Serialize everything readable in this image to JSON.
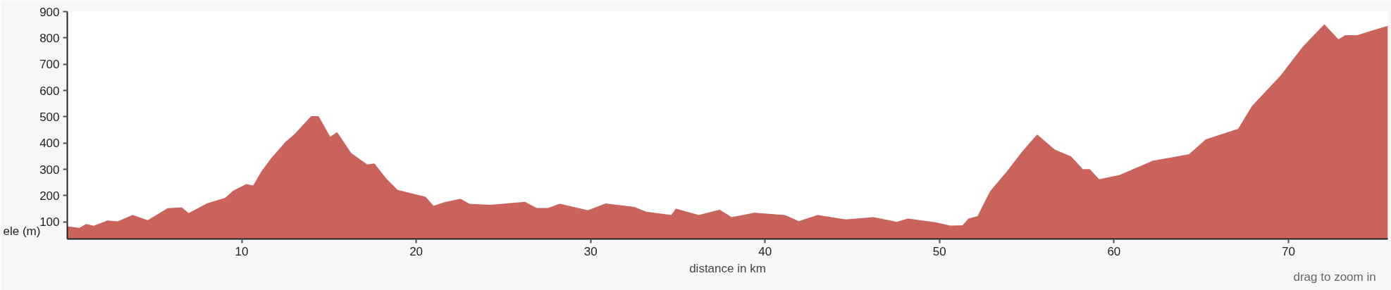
{
  "chart_data": {
    "type": "area",
    "xlabel": "distance in km",
    "ylabel": "ele (m)",
    "annotations": [
      "drag to zoom in"
    ],
    "xlim": [
      0,
      75.7
    ],
    "xticks": [
      10,
      20,
      30,
      40,
      50,
      60,
      70
    ],
    "ylim": [
      35,
      900
    ],
    "yticks": [
      100,
      200,
      300,
      400,
      500,
      600,
      700,
      800,
      900
    ],
    "grid": false,
    "series": [
      {
        "color": "#c9635c",
        "x": [
          0,
          0.69,
          1.09,
          1.5,
          2.29,
          2.9,
          3.75,
          4.62,
          5.75,
          6.55,
          6.95,
          8,
          9.07,
          9.55,
          10.27,
          10.67,
          11.14,
          11.74,
          12.54,
          13.07,
          13.99,
          14.39,
          15.06,
          15.46,
          16.26,
          17.19,
          17.59,
          18.26,
          18.92,
          20.52,
          20.99,
          21.58,
          22.52,
          23.05,
          24.24,
          26.24,
          26.9,
          27.57,
          28.23,
          29.85,
          30.85,
          32.5,
          33.17,
          34.64,
          34.9,
          36.2,
          37.4,
          38.07,
          39.4,
          41.13,
          41.93,
          43.02,
          44.62,
          46.21,
          47.55,
          48.21,
          49.81,
          50.61,
          51.34,
          51.67,
          52.2,
          52.93,
          53.93,
          54.73,
          55.6,
          56.6,
          57.53,
          58.2,
          58.6,
          59.14,
          60.34,
          62.2,
          64.33,
          65.27,
          67.13,
          67.93,
          69.53,
          70.86,
          72.06,
          72.86,
          73.26,
          73.93,
          74.59,
          75.7
        ],
        "values": [
          81,
          75,
          90,
          83,
          103,
          100,
          124,
          104,
          150,
          153,
          131,
          168,
          190,
          218,
          242,
          236,
          290,
          343,
          404,
          434,
          500,
          500,
          421,
          439,
          360,
          316,
          320,
          264,
          220,
          194,
          159,
          172,
          186,
          167,
          163,
          174,
          151,
          151,
          167,
          142,
          168,
          155,
          137,
          124,
          148,
          124,
          144,
          116,
          133,
          124,
          101,
          124,
          107,
          116,
          98,
          111,
          96,
          84,
          85,
          111,
          120,
          216,
          294,
          364,
          430,
          373,
          347,
          299,
          299,
          260,
          277,
          330,
          356,
          412,
          452,
          539,
          652,
          766,
          849,
          792,
          808,
          808,
          822,
          844
        ]
      }
    ]
  }
}
